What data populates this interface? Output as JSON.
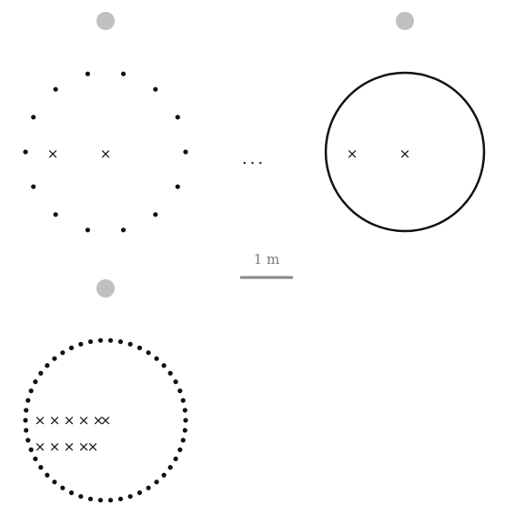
{
  "scale_bar": {
    "label": "1 m"
  },
  "ellipsis": "...",
  "cross_glyph": "×",
  "colors": {
    "marker": "#c0c0c0",
    "dot": "#111111",
    "ring": "#111111",
    "scale": "#888888",
    "scale_text": "#777777"
  },
  "panels": [
    {
      "id": "discrete-ring",
      "dot_count": 14,
      "interior_crosses": 2
    },
    {
      "id": "continuous-ring",
      "interior_crosses": 2
    },
    {
      "id": "dense-ring",
      "dot_count": 50,
      "interior_crosses_rows": [
        6,
        5
      ]
    }
  ]
}
